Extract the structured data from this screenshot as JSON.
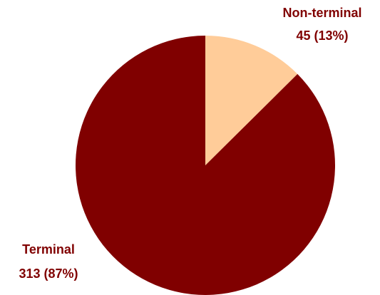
{
  "chart_data": {
    "type": "pie",
    "title": "",
    "slices": [
      {
        "label": "Non-terminal",
        "value": 45,
        "percent": 13,
        "display": "45 (13%)",
        "color": "#FFCC99"
      },
      {
        "label": "Terminal",
        "value": 313,
        "percent": 87,
        "display": "313 (87%)",
        "color": "#800000"
      }
    ],
    "label_color": "#800000",
    "start_angle": "12 o'clock",
    "direction": "clockwise",
    "legend": "none"
  }
}
